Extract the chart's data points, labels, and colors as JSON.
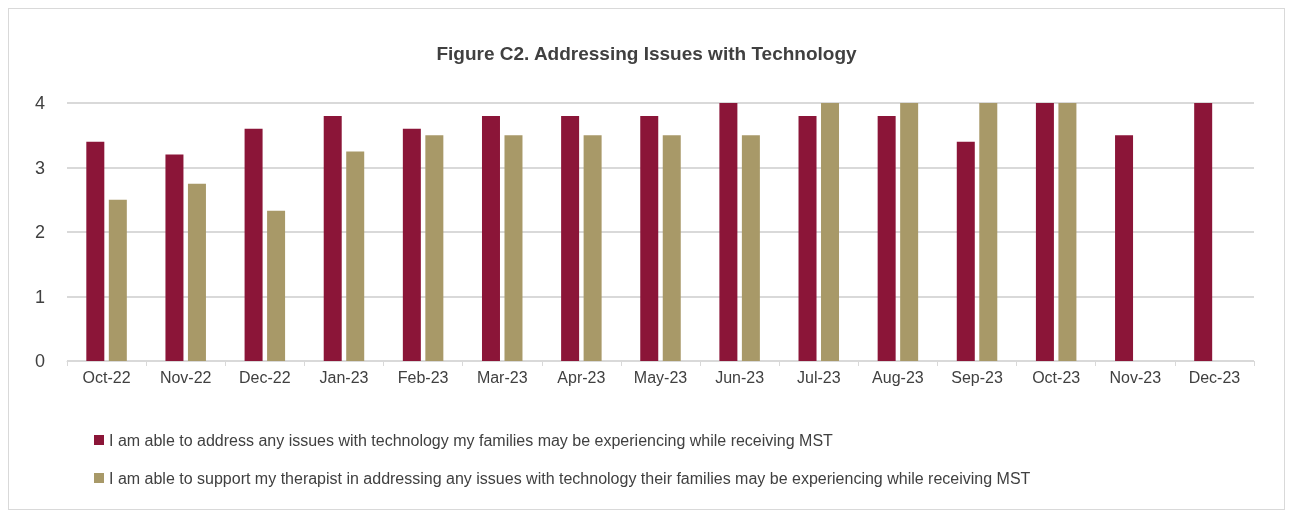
{
  "chart_data": {
    "type": "bar",
    "title": "Figure C2. Addressing Issues with Technology",
    "categories": [
      "Oct-22",
      "Nov-22",
      "Dec-22",
      "Jan-23",
      "Feb-23",
      "Mar-23",
      "Apr-23",
      "May-23",
      "Jun-23",
      "Jul-23",
      "Aug-23",
      "Sep-23",
      "Oct-23",
      "Nov-23",
      "Dec-23"
    ],
    "series": [
      {
        "name": "I am able to address any issues with technology my families may be experiencing while receiving MST",
        "color": "#8b1538",
        "values": [
          3.4,
          3.2,
          3.6,
          3.8,
          3.6,
          3.8,
          3.8,
          3.8,
          4,
          3.8,
          3.8,
          3.4,
          4,
          3.5,
          4
        ]
      },
      {
        "name": "I am able to support my therapist in addressing any issues with technology their families may be experiencing while receiving MST",
        "color": "#a89968",
        "values": [
          2.5,
          2.75,
          2.33,
          3.25,
          3.5,
          3.5,
          3.5,
          3.5,
          3.5,
          4,
          4,
          4,
          4,
          null,
          null
        ]
      }
    ],
    "ylim": [
      0,
      4
    ],
    "yticks": [
      0,
      1,
      2,
      3,
      4
    ],
    "grid": "y",
    "legend": "bottom"
  }
}
